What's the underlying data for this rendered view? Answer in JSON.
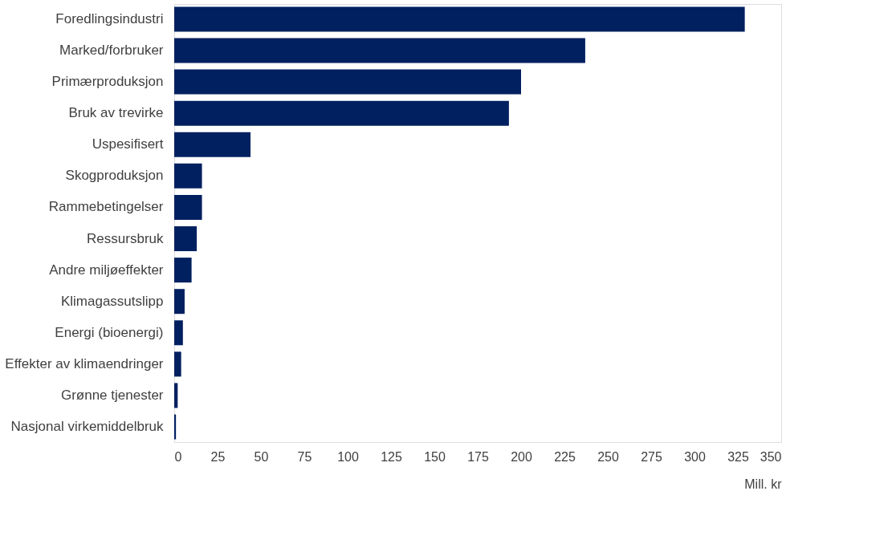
{
  "chart_data": {
    "type": "bar",
    "orientation": "horizontal",
    "xlabel": "Mill. kr",
    "categories": [
      "Foredlingsindustri",
      "Marked/forbruker",
      "Primærproduksjon",
      "Bruk av trevirke",
      "Uspesifisert",
      "Skogproduksjon",
      "Rammebetingelser",
      "Ressursbruk",
      "Andre miljøeffekter",
      "Klimagassutslipp",
      "Energi (bioenergi)",
      "Effekter av klimaendringer",
      "Grønne tjenester",
      "Nasjonal virkemiddelbruk"
    ],
    "values": [
      329,
      237,
      200,
      193,
      44,
      16,
      16,
      13,
      10,
      6,
      5,
      4,
      2,
      1
    ],
    "color": "#002060",
    "xlim": [
      0,
      350
    ],
    "xticks": [
      0,
      25,
      50,
      75,
      100,
      125,
      150,
      175,
      200,
      225,
      250,
      275,
      300,
      325,
      350
    ],
    "grid": false
  }
}
